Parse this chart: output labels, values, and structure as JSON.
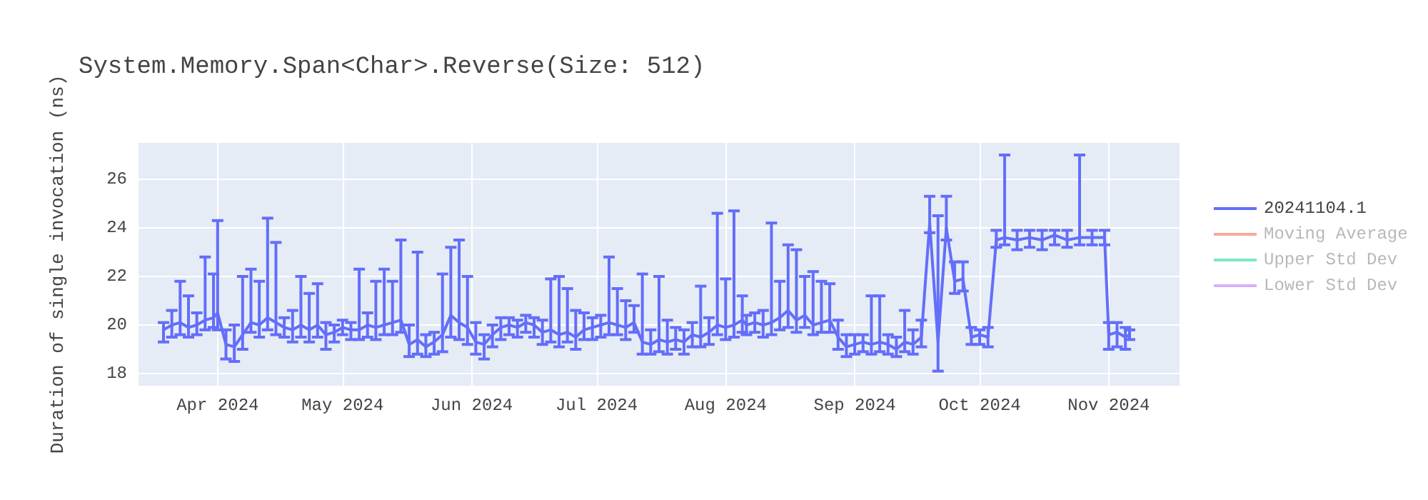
{
  "chart_data": {
    "type": "line",
    "title": "System.Memory.Span<Char>.Reverse(Size: 512)",
    "ylabel": "Duration of single invocation (ns)",
    "xlim": [
      "2024-03-13",
      "2024-11-18"
    ],
    "xticks": [
      {
        "value": "2024-04-01",
        "label": "Apr 2024"
      },
      {
        "value": "2024-05-01",
        "label": "May 2024"
      },
      {
        "value": "2024-06-01",
        "label": "Jun 2024"
      },
      {
        "value": "2024-07-01",
        "label": "Jul 2024"
      },
      {
        "value": "2024-08-01",
        "label": "Aug 2024"
      },
      {
        "value": "2024-09-01",
        "label": "Sep 2024"
      },
      {
        "value": "2024-10-01",
        "label": "Oct 2024"
      },
      {
        "value": "2024-11-01",
        "label": "Nov 2024"
      }
    ],
    "ylim": [
      17.5,
      27.5
    ],
    "yticks": [
      18,
      20,
      22,
      24,
      26
    ],
    "grid": true,
    "legend": "top right",
    "x": [
      "2024-03-19",
      "2024-03-21",
      "2024-03-23",
      "2024-03-25",
      "2024-03-27",
      "2024-03-29",
      "2024-03-31",
      "2024-04-01",
      "2024-04-03",
      "2024-04-05",
      "2024-04-07",
      "2024-04-09",
      "2024-04-11",
      "2024-04-13",
      "2024-04-15",
      "2024-04-17",
      "2024-04-19",
      "2024-04-21",
      "2024-04-23",
      "2024-04-25",
      "2024-04-27",
      "2024-04-29",
      "2024-05-01",
      "2024-05-03",
      "2024-05-05",
      "2024-05-07",
      "2024-05-09",
      "2024-05-11",
      "2024-05-13",
      "2024-05-15",
      "2024-05-17",
      "2024-05-19",
      "2024-05-21",
      "2024-05-23",
      "2024-05-25",
      "2024-05-27",
      "2024-05-29",
      "2024-05-31",
      "2024-06-02",
      "2024-06-04",
      "2024-06-06",
      "2024-06-08",
      "2024-06-10",
      "2024-06-12",
      "2024-06-14",
      "2024-06-16",
      "2024-06-18",
      "2024-06-20",
      "2024-06-22",
      "2024-06-24",
      "2024-06-26",
      "2024-06-28",
      "2024-06-30",
      "2024-07-02",
      "2024-07-04",
      "2024-07-06",
      "2024-07-08",
      "2024-07-10",
      "2024-07-12",
      "2024-07-14",
      "2024-07-16",
      "2024-07-18",
      "2024-07-20",
      "2024-07-22",
      "2024-07-24",
      "2024-07-26",
      "2024-07-28",
      "2024-07-30",
      "2024-08-01",
      "2024-08-03",
      "2024-08-05",
      "2024-08-06",
      "2024-08-08",
      "2024-08-10",
      "2024-08-12",
      "2024-08-14",
      "2024-08-16",
      "2024-08-18",
      "2024-08-20",
      "2024-08-22",
      "2024-08-24",
      "2024-08-26",
      "2024-08-28",
      "2024-08-30",
      "2024-09-01",
      "2024-09-03",
      "2024-09-05",
      "2024-09-07",
      "2024-09-09",
      "2024-09-11",
      "2024-09-13",
      "2024-09-15",
      "2024-09-17",
      "2024-09-19",
      "2024-09-21",
      "2024-09-23",
      "2024-09-25",
      "2024-09-27",
      "2024-09-29",
      "2024-10-01",
      "2024-10-03",
      "2024-10-05",
      "2024-10-07",
      "2024-10-10",
      "2024-10-13",
      "2024-10-16",
      "2024-10-19",
      "2024-10-22",
      "2024-10-25",
      "2024-10-28",
      "2024-10-31",
      "2024-11-01",
      "2024-11-03",
      "2024-11-05",
      "2024-11-06"
    ],
    "series": [
      {
        "name": "20241104.1",
        "color": "#636efa",
        "values": [
          19.8,
          20.0,
          20.1,
          19.9,
          20.0,
          20.2,
          20.3,
          20.5,
          19.2,
          19.1,
          19.6,
          20.1,
          20.0,
          20.3,
          20.1,
          19.9,
          19.8,
          20.0,
          19.8,
          20.0,
          19.6,
          19.7,
          19.9,
          19.8,
          19.8,
          20.0,
          19.9,
          20.0,
          20.1,
          20.2,
          19.2,
          19.4,
          19.1,
          19.3,
          19.6,
          20.4,
          20.1,
          19.9,
          19.3,
          19.2,
          19.6,
          19.9,
          20.0,
          19.9,
          20.1,
          20.0,
          19.7,
          19.8,
          19.6,
          19.7,
          19.5,
          19.8,
          19.9,
          20.0,
          20.1,
          20.0,
          19.9,
          20.1,
          19.3,
          19.2,
          19.4,
          19.3,
          19.4,
          19.3,
          19.6,
          19.5,
          19.7,
          20.0,
          19.9,
          20.0,
          20.2,
          20.0,
          20.1,
          20.0,
          20.1,
          20.3,
          20.6,
          20.2,
          20.4,
          20.0,
          20.1,
          20.2,
          19.5,
          19.1,
          19.2,
          19.3,
          19.2,
          19.3,
          19.2,
          19.0,
          19.3,
          19.2,
          19.5,
          24.2,
          19.3,
          24.0,
          21.8,
          21.9,
          19.5,
          19.6,
          19.5,
          23.5,
          23.6,
          23.5,
          23.6,
          23.5,
          23.7,
          23.5,
          23.6,
          23.6,
          23.6,
          19.6,
          19.7,
          19.5,
          19.6
        ],
        "errors": [
          [
            19.3,
            20.1
          ],
          [
            19.5,
            20.6
          ],
          [
            19.6,
            21.8
          ],
          [
            19.5,
            21.2
          ],
          [
            19.6,
            20.5
          ],
          [
            19.8,
            22.8
          ],
          [
            19.9,
            22.1
          ],
          [
            19.8,
            24.3
          ],
          [
            18.6,
            19.8
          ],
          [
            18.5,
            20.0
          ],
          [
            19.0,
            22.0
          ],
          [
            19.7,
            22.3
          ],
          [
            19.5,
            21.8
          ],
          [
            19.8,
            24.4
          ],
          [
            19.6,
            23.4
          ],
          [
            19.5,
            20.3
          ],
          [
            19.3,
            20.6
          ],
          [
            19.5,
            22.0
          ],
          [
            19.3,
            21.3
          ],
          [
            19.5,
            21.7
          ],
          [
            19.0,
            20.1
          ],
          [
            19.3,
            20.0
          ],
          [
            19.6,
            20.2
          ],
          [
            19.4,
            20.1
          ],
          [
            19.4,
            22.3
          ],
          [
            19.5,
            20.5
          ],
          [
            19.4,
            21.8
          ],
          [
            19.6,
            22.3
          ],
          [
            19.6,
            21.8
          ],
          [
            19.7,
            23.5
          ],
          [
            18.7,
            20.0
          ],
          [
            18.8,
            23.0
          ],
          [
            18.7,
            19.6
          ],
          [
            18.8,
            19.7
          ],
          [
            18.9,
            22.1
          ],
          [
            19.5,
            23.2
          ],
          [
            19.4,
            23.5
          ],
          [
            19.2,
            22.0
          ],
          [
            18.8,
            20.1
          ],
          [
            18.6,
            19.6
          ],
          [
            19.1,
            20.0
          ],
          [
            19.4,
            20.3
          ],
          [
            19.6,
            20.3
          ],
          [
            19.5,
            20.2
          ],
          [
            19.7,
            20.4
          ],
          [
            19.5,
            20.3
          ],
          [
            19.2,
            20.2
          ],
          [
            19.3,
            21.9
          ],
          [
            19.1,
            22.0
          ],
          [
            19.3,
            21.5
          ],
          [
            19.0,
            20.6
          ],
          [
            19.4,
            20.5
          ],
          [
            19.4,
            20.3
          ],
          [
            19.5,
            20.4
          ],
          [
            19.6,
            22.8
          ],
          [
            19.6,
            21.5
          ],
          [
            19.4,
            21.0
          ],
          [
            19.7,
            20.8
          ],
          [
            18.8,
            22.1
          ],
          [
            18.8,
            19.8
          ],
          [
            18.9,
            22.0
          ],
          [
            18.8,
            20.2
          ],
          [
            19.0,
            19.9
          ],
          [
            18.8,
            19.8
          ],
          [
            19.1,
            20.1
          ],
          [
            19.1,
            21.6
          ],
          [
            19.2,
            20.3
          ],
          [
            19.6,
            24.6
          ],
          [
            19.4,
            21.9
          ],
          [
            19.5,
            24.7
          ],
          [
            19.7,
            21.2
          ],
          [
            19.6,
            20.4
          ],
          [
            19.7,
            20.5
          ],
          [
            19.5,
            20.6
          ],
          [
            19.6,
            24.2
          ],
          [
            19.8,
            21.8
          ],
          [
            19.9,
            23.3
          ],
          [
            19.7,
            23.1
          ],
          [
            19.9,
            22.0
          ],
          [
            19.6,
            22.2
          ],
          [
            19.7,
            21.8
          ],
          [
            19.7,
            21.7
          ],
          [
            19.0,
            20.2
          ],
          [
            18.7,
            19.6
          ],
          [
            18.8,
            19.6
          ],
          [
            18.9,
            19.6
          ],
          [
            18.8,
            21.2
          ],
          [
            18.9,
            21.2
          ],
          [
            18.8,
            19.6
          ],
          [
            18.7,
            19.5
          ],
          [
            18.9,
            20.6
          ],
          [
            18.8,
            19.8
          ],
          [
            19.1,
            20.2
          ],
          [
            23.8,
            25.3
          ],
          [
            18.1,
            24.5
          ],
          [
            23.5,
            25.3
          ],
          [
            21.3,
            22.6
          ],
          [
            21.4,
            22.6
          ],
          [
            19.2,
            19.9
          ],
          [
            19.2,
            19.8
          ],
          [
            19.1,
            19.9
          ],
          [
            23.2,
            23.9
          ],
          [
            23.3,
            27.0
          ],
          [
            23.1,
            23.9
          ],
          [
            23.2,
            23.9
          ],
          [
            23.1,
            23.9
          ],
          [
            23.3,
            23.9
          ],
          [
            23.2,
            23.9
          ],
          [
            23.3,
            27.0
          ],
          [
            23.3,
            23.9
          ],
          [
            23.3,
            23.9
          ],
          [
            19.0,
            20.1
          ],
          [
            19.1,
            20.1
          ],
          [
            19.0,
            19.9
          ],
          [
            19.4,
            19.8
          ]
        ]
      },
      {
        "name": "Moving Average",
        "color": "#f5a99d",
        "values": [
          null,
          null,
          null,
          null,
          null,
          null,
          null,
          null,
          null,
          null,
          null,
          null,
          null,
          null,
          null,
          null,
          null,
          null,
          null,
          null,
          null,
          null,
          null,
          null,
          null,
          null,
          null,
          null,
          null,
          null,
          null,
          null,
          null,
          null,
          null,
          null,
          null,
          null,
          null,
          null,
          null,
          null,
          null,
          null,
          null,
          null,
          null,
          null,
          null,
          null,
          null,
          null,
          null,
          null,
          null,
          null,
          null,
          null,
          null,
          null,
          null,
          null,
          null,
          null,
          null,
          null,
          null,
          null,
          null,
          null,
          null,
          null,
          null,
          null,
          null,
          null,
          null,
          null,
          null,
          null,
          null,
          null,
          null,
          null,
          null,
          null,
          null,
          null,
          null,
          null,
          null,
          null,
          null,
          null,
          null,
          null,
          null,
          null,
          null,
          null,
          null,
          null,
          null,
          null,
          null,
          null,
          null,
          null,
          null,
          null,
          null,
          null,
          null,
          null,
          null
        ]
      },
      {
        "name": "Upper Std Dev",
        "color": "#7fe5ca",
        "values": [
          null,
          null,
          null,
          null,
          null,
          null,
          null,
          null,
          null,
          null,
          null,
          null,
          null,
          null,
          null,
          null,
          null,
          null,
          null,
          null,
          null,
          null,
          null,
          null,
          null,
          null,
          null,
          null,
          null,
          null,
          null,
          null,
          null,
          null,
          null,
          null,
          null,
          null,
          null,
          null,
          null,
          null,
          null,
          null,
          null,
          null,
          null,
          null,
          null,
          null,
          null,
          null,
          null,
          null,
          null,
          null,
          null,
          null,
          null,
          null,
          null,
          null,
          null,
          null,
          null,
          null,
          null,
          null,
          null,
          null,
          null,
          null,
          null,
          null,
          null,
          null,
          null,
          null,
          null,
          null,
          null,
          null,
          null,
          null,
          null,
          null,
          null,
          null,
          null,
          null,
          null,
          null,
          null,
          null,
          null,
          null,
          null,
          null,
          null,
          null,
          null,
          null,
          null,
          null,
          null,
          null,
          null,
          null,
          null,
          null,
          null,
          null,
          null,
          null,
          null
        ]
      },
      {
        "name": "Lower Std Dev",
        "color": "#d5b1fc",
        "values": [
          null,
          null,
          null,
          null,
          null,
          null,
          null,
          null,
          null,
          null,
          null,
          null,
          null,
          null,
          null,
          null,
          null,
          null,
          null,
          null,
          null,
          null,
          null,
          null,
          null,
          null,
          null,
          null,
          null,
          null,
          null,
          null,
          null,
          null,
          null,
          null,
          null,
          null,
          null,
          null,
          null,
          null,
          null,
          null,
          null,
          null,
          null,
          null,
          null,
          null,
          null,
          null,
          null,
          null,
          null,
          null,
          null,
          null,
          null,
          null,
          null,
          null,
          null,
          null,
          null,
          null,
          null,
          null,
          null,
          null,
          null,
          null,
          null,
          null,
          null,
          null,
          null,
          null,
          null,
          null,
          null,
          null,
          null,
          null,
          null,
          null,
          null,
          null,
          null,
          null,
          null,
          null,
          null,
          null,
          null,
          null,
          null,
          null,
          null,
          null,
          null,
          null,
          null,
          null,
          null,
          null,
          null,
          null,
          null,
          null,
          null,
          null,
          null,
          null,
          null
        ]
      }
    ]
  }
}
